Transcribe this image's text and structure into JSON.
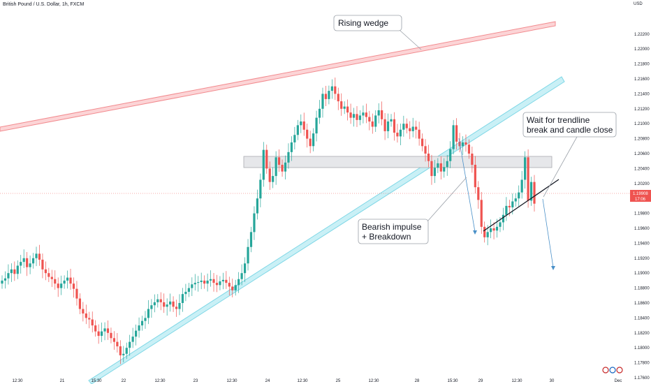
{
  "header": {
    "title": "British Pound / U.S. Dollar, 1h, FXCM",
    "currency": "USD"
  },
  "colors": {
    "up": "#26a69a",
    "down": "#ef5350",
    "wedge_upper": "#f28b8f",
    "wedge_lower": "#7fd7e6",
    "zone": "#dfe1e5",
    "price_tag": "#ef5350"
  },
  "current_price": {
    "value": "1.19908",
    "countdown": "17:06"
  },
  "annotations": {
    "rising_wedge": "Rising wedge",
    "bearish_impulse_1": "Bearish impulse",
    "bearish_impulse_2": "+ Breakdown",
    "wait_1": "Wait for trendline",
    "wait_2": "break and candle close"
  },
  "chart_data": {
    "type": "candlestick",
    "title": "British Pound / U.S. Dollar, 1h, FXCM",
    "y_axis": {
      "label": "USD",
      "range": [
        1.176,
        1.226
      ],
      "ticks": [
        "1.22200",
        "1.22000",
        "1.21800",
        "1.21600",
        "1.21400",
        "1.21200",
        "1.21000",
        "1.20800",
        "1.20600",
        "1.20400",
        "1.20200",
        "1.20000",
        "1.19800",
        "1.19600",
        "1.19400",
        "1.19200",
        "1.19000",
        "1.18800",
        "1.18600",
        "1.18400",
        "1.18200",
        "1.18000",
        "1.17800",
        "1.17600"
      ]
    },
    "x_axis": {
      "ticks": [
        "12:30",
        "21",
        "15:30",
        "22",
        "12:30",
        "23",
        "12:30",
        "24",
        "12:30",
        "25",
        "12:30",
        "28",
        "15:30",
        "29",
        "12:30",
        "30",
        "Dec"
      ]
    },
    "candles_close": [
      1.189,
      1.1893,
      1.19,
      1.1905,
      1.1899,
      1.191,
      1.1915,
      1.192,
      1.1908,
      1.1913,
      1.192,
      1.1926,
      1.1918,
      1.1905,
      1.19,
      1.1895,
      1.1892,
      1.1886,
      1.188,
      1.1886,
      1.189,
      1.1894,
      1.1886,
      1.1879,
      1.1866,
      1.1852,
      1.1846,
      1.184,
      1.1838,
      1.183,
      1.1822,
      1.1816,
      1.1822,
      1.1826,
      1.182,
      1.1813,
      1.1808,
      1.1802,
      1.179,
      1.1792,
      1.18,
      1.1808,
      1.1815,
      1.1823,
      1.183,
      1.1836,
      1.184,
      1.1852,
      1.1857,
      1.1861,
      1.1865,
      1.1861,
      1.1855,
      1.1858,
      1.1862,
      1.1855,
      1.1852,
      1.186,
      1.1872,
      1.1875,
      1.188,
      1.1885,
      1.1887,
      1.1888,
      1.189,
      1.1886,
      1.189,
      1.1892,
      1.1887,
      1.1884,
      1.1889,
      1.1891,
      1.1887,
      1.1882,
      1.1877,
      1.1884,
      1.1892,
      1.19,
      1.1913,
      1.1935,
      1.1955,
      1.198,
      1.2,
      1.2025,
      1.2065,
      1.204,
      1.2022,
      1.203,
      1.2055,
      1.2045,
      1.2036,
      1.2048,
      1.2062,
      1.2075,
      1.2085,
      1.2098,
      1.2103,
      1.2092,
      1.208,
      1.207,
      1.2087,
      1.2108,
      1.212,
      1.214,
      1.2133,
      1.2144,
      1.215,
      1.214,
      1.213,
      1.212,
      1.2123,
      1.2115,
      1.2108,
      1.2113,
      1.2105,
      1.2111,
      1.2115,
      1.2109,
      1.2103,
      1.2096,
      1.2111,
      1.2118,
      1.2106,
      1.209,
      1.2103,
      1.2106,
      1.2088,
      1.2083,
      1.2092,
      1.21,
      1.2094,
      1.209,
      1.2096,
      1.2092,
      1.208,
      1.207,
      1.206,
      1.205,
      1.203,
      1.2041,
      1.2047,
      1.2036,
      1.2042,
      1.205,
      1.2066,
      1.2098,
      1.2076,
      1.207,
      1.2075,
      1.2072,
      1.206,
      1.2045,
      1.2015,
      1.1998,
      1.1962,
      1.1948,
      1.1955,
      1.196,
      1.1957,
      1.1962,
      1.1968,
      1.1978,
      1.199,
      1.1988,
      1.1996,
      1.2,
      1.2008,
      1.2025,
      1.2055,
      1.1997,
      1.2022,
      1.1993
    ],
    "levels": {
      "resistance_zone": [
        1.2024,
        1.2038
      ],
      "rising_wedge_upper_line": {
        "from": [
          "start",
          1.2069
        ],
        "to": [
          "29-30",
          1.2213
        ]
      },
      "rising_wedge_lower_line": {
        "from": [
          "21-22",
          1.1772
        ],
        "to": [
          "30",
          1.2132
        ]
      },
      "short_trendline": {
        "from": [
          "29",
          1.1945
        ],
        "to": [
          "30",
          1.2008
        ]
      }
    },
    "projections": [
      {
        "from": [
          "28 15:30",
          1.2058
        ],
        "to": [
          "29",
          1.1938
        ]
      },
      {
        "from": [
          "30",
          1.199
        ],
        "to": [
          "30+",
          1.1895
        ]
      }
    ],
    "grid": false
  }
}
